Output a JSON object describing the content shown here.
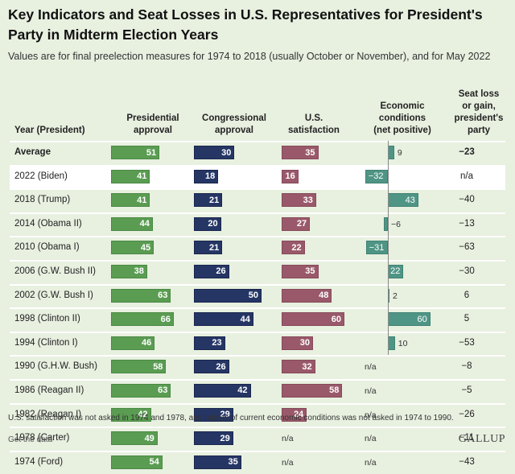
{
  "title": "Key Indicators and Seat Losses in U.S. Representatives for President's Party in Midterm Election Years",
  "subtitle": "Values are for final preelection measures for 1974 to 2018 (usually October or November), and for May 2022",
  "footnote": "U.S. satisfaction was not asked in 1974 and 1978, and ratings of current economic conditions was not asked in 1974 to 1990.",
  "get_data_label": "Get the data",
  "logo": "GALLUP",
  "na_label": "n/a",
  "colors": {
    "presidential": "#5a9c52",
    "congressional": "#253665",
    "satisfaction": "#99596a",
    "economic": "#4f9585",
    "highlight_row": "#ffffff",
    "background": "#e8f0e0"
  },
  "headers": {
    "year": "Year (President)",
    "presidential": "Presidential\napproval",
    "congressional": "Congressional\napproval",
    "satisfaction": "U.S.\nsatisfaction",
    "economic": "Economic\nconditions\n(net positive)",
    "seat": "Seat loss\nor gain,\npresident's\nparty"
  },
  "chart_data": {
    "type": "table",
    "title": "Key Indicators and Seat Losses in U.S. Representatives for President's Party in Midterm Election Years",
    "columns": [
      "Year (President)",
      "Presidential approval",
      "Congressional approval",
      "U.S. satisfaction",
      "Economic conditions (net positive)",
      "Seat loss or gain, president's party"
    ],
    "rows": [
      {
        "label": "Average",
        "presidential": 51,
        "congressional": 30,
        "satisfaction": 35,
        "economic": 9,
        "seat": "−23",
        "avg": true
      },
      {
        "label": "2022 (Biden)",
        "presidential": 41,
        "congressional": 18,
        "satisfaction": 16,
        "economic": -32,
        "seat": "n/a",
        "highlight": true
      },
      {
        "label": "2018 (Trump)",
        "presidential": 41,
        "congressional": 21,
        "satisfaction": 33,
        "economic": 43,
        "seat": "−40"
      },
      {
        "label": "2014 (Obama II)",
        "presidential": 44,
        "congressional": 20,
        "satisfaction": 27,
        "economic": -6,
        "seat": "−13"
      },
      {
        "label": "2010 (Obama I)",
        "presidential": 45,
        "congressional": 21,
        "satisfaction": 22,
        "economic": -31,
        "seat": "−63"
      },
      {
        "label": "2006 (G.W. Bush II)",
        "presidential": 38,
        "congressional": 26,
        "satisfaction": 35,
        "economic": 22,
        "seat": "−30"
      },
      {
        "label": "2002 (G.W. Bush I)",
        "presidential": 63,
        "congressional": 50,
        "satisfaction": 48,
        "economic": 2,
        "seat": "6"
      },
      {
        "label": "1998 (Clinton II)",
        "presidential": 66,
        "congressional": 44,
        "satisfaction": 60,
        "economic": 60,
        "seat": "5"
      },
      {
        "label": "1994 (Clinton I)",
        "presidential": 46,
        "congressional": 23,
        "satisfaction": 30,
        "economic": 10,
        "seat": "−53"
      },
      {
        "label": "1990 (G.H.W. Bush)",
        "presidential": 58,
        "congressional": 26,
        "satisfaction": 32,
        "economic": null,
        "seat": "−8"
      },
      {
        "label": "1986 (Reagan II)",
        "presidential": 63,
        "congressional": 42,
        "satisfaction": 58,
        "economic": null,
        "seat": "−5"
      },
      {
        "label": "1982 (Reagan I)",
        "presidential": 42,
        "congressional": 29,
        "satisfaction": 24,
        "economic": null,
        "seat": "−26"
      },
      {
        "label": "1978 (Carter)",
        "presidential": 49,
        "congressional": 29,
        "satisfaction": null,
        "economic": null,
        "seat": "−11"
      },
      {
        "label": "1974 (Ford)",
        "presidential": 54,
        "congressional": 35,
        "satisfaction": null,
        "economic": null,
        "seat": "−43"
      }
    ]
  }
}
